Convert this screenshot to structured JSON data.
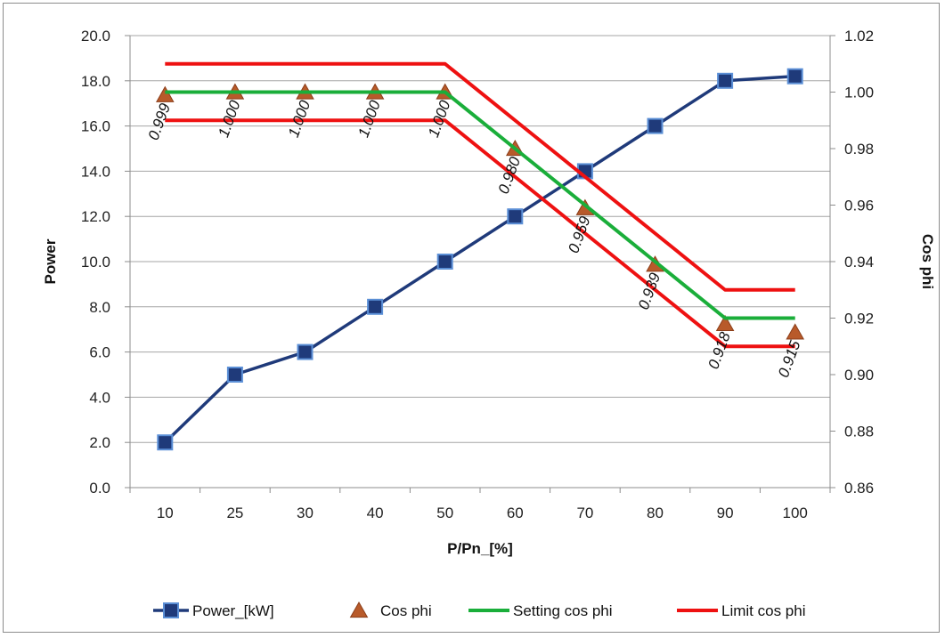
{
  "chart_data": {
    "type": "line",
    "categories": [
      "10",
      "25",
      "30",
      "40",
      "50",
      "60",
      "70",
      "80",
      "90",
      "100"
    ],
    "xlabel": "P/Pn_[%]",
    "ylabel": "Power",
    "y2label": "Cos phi",
    "ylim": [
      0,
      20
    ],
    "y2lim": [
      0.86,
      1.02
    ],
    "y_ticks": [
      "0.0",
      "2.0",
      "4.0",
      "6.0",
      "8.0",
      "10.0",
      "12.0",
      "14.0",
      "16.0",
      "18.0",
      "20.0"
    ],
    "y2_ticks": [
      "0.86",
      "0.88",
      "0.90",
      "0.92",
      "0.94",
      "0.96",
      "0.98",
      "1.00",
      "1.02"
    ],
    "grid": "horizontal",
    "legend_position": "bottom",
    "series": [
      {
        "name": "Power_[kW]",
        "axis": "left",
        "kind": "line-marker",
        "marker": "square",
        "color": "#1f3a7a",
        "marker_fill": "#1f3a7a",
        "marker_edge": "#5b8fd6",
        "values": [
          2.0,
          5.0,
          6.0,
          8.0,
          10.0,
          12.0,
          14.0,
          16.0,
          18.0,
          18.2
        ]
      },
      {
        "name": "Cos phi",
        "axis": "right",
        "kind": "marker",
        "marker": "triangle",
        "color": "#b85a2a",
        "marker_edge": "#8b3e1a",
        "values": [
          0.999,
          1.0,
          1.0,
          1.0,
          1.0,
          0.98,
          0.959,
          0.939,
          0.918,
          0.915
        ],
        "data_labels": [
          "0.999",
          "1.000",
          "1.000",
          "1.000",
          "1.000",
          "0.980",
          "0.959",
          "0.939",
          "0.918",
          "0.915"
        ]
      },
      {
        "name": "Setting cos phi",
        "axis": "right",
        "kind": "line",
        "color": "#1aae3a",
        "values": [
          1.0,
          1.0,
          1.0,
          1.0,
          1.0,
          0.98,
          0.96,
          0.94,
          0.92,
          0.92
        ]
      },
      {
        "name": "Limit cos phi",
        "axis": "right",
        "kind": "line",
        "color": "#ee1111",
        "values": [
          1.01,
          1.01,
          1.01,
          1.01,
          1.01,
          0.99,
          0.97,
          0.95,
          0.93,
          0.93
        ]
      },
      {
        "name": "",
        "axis": "right",
        "kind": "line",
        "color": "#ee1111",
        "show_in_legend": false,
        "values": [
          0.99,
          0.99,
          0.99,
          0.99,
          0.99,
          0.97,
          0.95,
          0.93,
          0.91,
          0.91
        ]
      }
    ]
  }
}
